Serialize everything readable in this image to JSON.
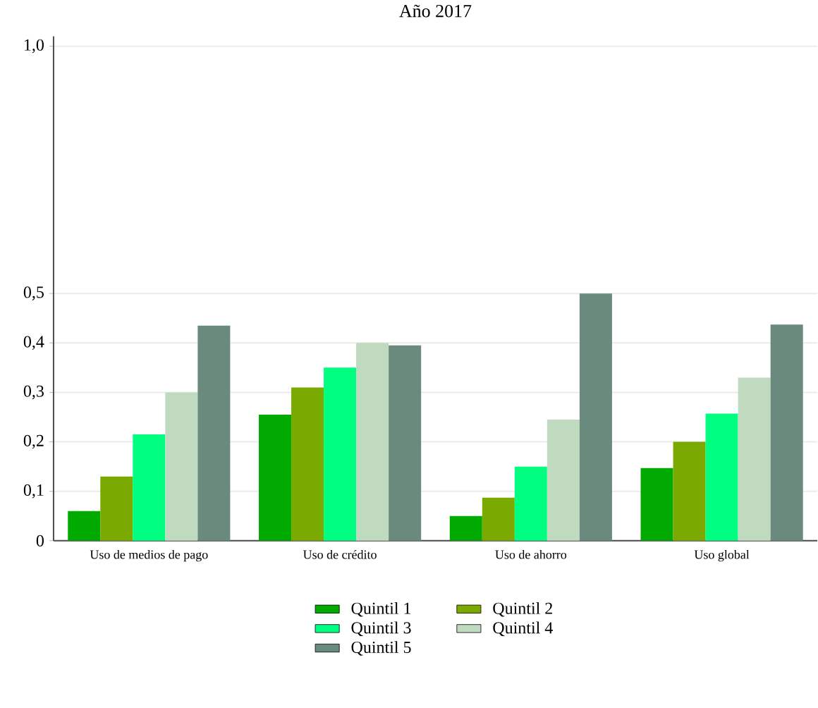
{
  "chart_data": {
    "type": "bar",
    "title": "Año 2017",
    "categories": [
      "Uso de medios de pago",
      "Uso de crédito",
      "Uso de ahorro",
      "Uso global"
    ],
    "series": [
      {
        "name": "Quintil 1",
        "color": "#00aa00",
        "values": [
          0.06,
          0.255,
          0.05,
          0.147
        ]
      },
      {
        "name": "Quintil 2",
        "color": "#7aaa00",
        "values": [
          0.13,
          0.31,
          0.087,
          0.2
        ]
      },
      {
        "name": "Quintil 3",
        "color": "#00ff80",
        "values": [
          0.215,
          0.35,
          0.15,
          0.257
        ]
      },
      {
        "name": "Quintil 4",
        "color": "#bfdabf",
        "values": [
          0.3,
          0.4,
          0.245,
          0.33
        ]
      },
      {
        "name": "Quintil 5",
        "color": "#6b8a7e",
        "values": [
          0.435,
          0.395,
          0.5,
          0.437
        ]
      }
    ],
    "ylim": [
      0,
      1.02
    ],
    "yticks": [
      0,
      {
        "value": 0.1,
        "label": "0,1"
      },
      {
        "value": 0.2,
        "label": "0,2"
      },
      {
        "value": 0.3,
        "label": "0,3"
      },
      {
        "value": 0.4,
        "label": "0,4"
      },
      {
        "value": 0.5,
        "label": "0,5"
      },
      {
        "value": 1.0,
        "label": "1,0"
      }
    ],
    "grid": "y",
    "legend": "bottom"
  }
}
